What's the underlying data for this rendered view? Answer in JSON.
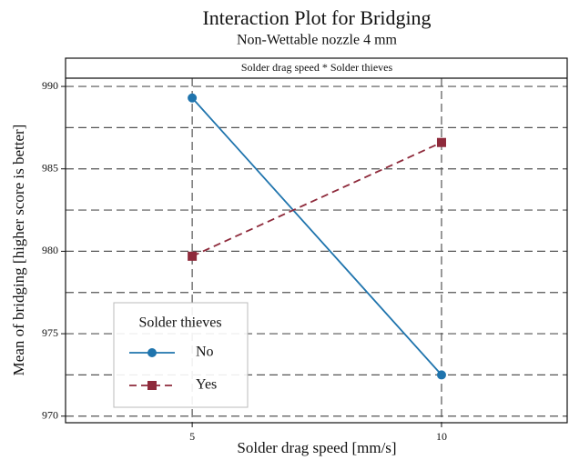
{
  "chart_data": {
    "type": "line",
    "title": "Interaction Plot for Bridging",
    "subtitle": "Non-Wettable nozzle 4 mm",
    "panel_title": "Solder drag speed * Solder thieves",
    "x_label": "Solder drag speed [mm/s]",
    "y_label": "Mean of bridging [higher score is better]",
    "x": [
      5,
      10
    ],
    "series": [
      {
        "name": "No",
        "color": "#1f74ad",
        "marker": "circle",
        "dash": false,
        "values": [
          989.3,
          972.5
        ]
      },
      {
        "name": "Yes",
        "color": "#8e2a3b",
        "marker": "square",
        "dash": true,
        "values": [
          979.7,
          986.6
        ]
      }
    ],
    "legend_title": "Solder thieves",
    "xlim": [
      2.46,
      12.52
    ],
    "xticks": [
      5,
      10
    ],
    "ylim": [
      969.6,
      990.5
    ],
    "yticks": [
      970,
      975,
      980,
      985,
      990
    ],
    "ygrid": [
      970,
      972.5,
      975,
      977.5,
      980,
      982.5,
      985,
      987.5,
      990
    ],
    "grid": true
  }
}
